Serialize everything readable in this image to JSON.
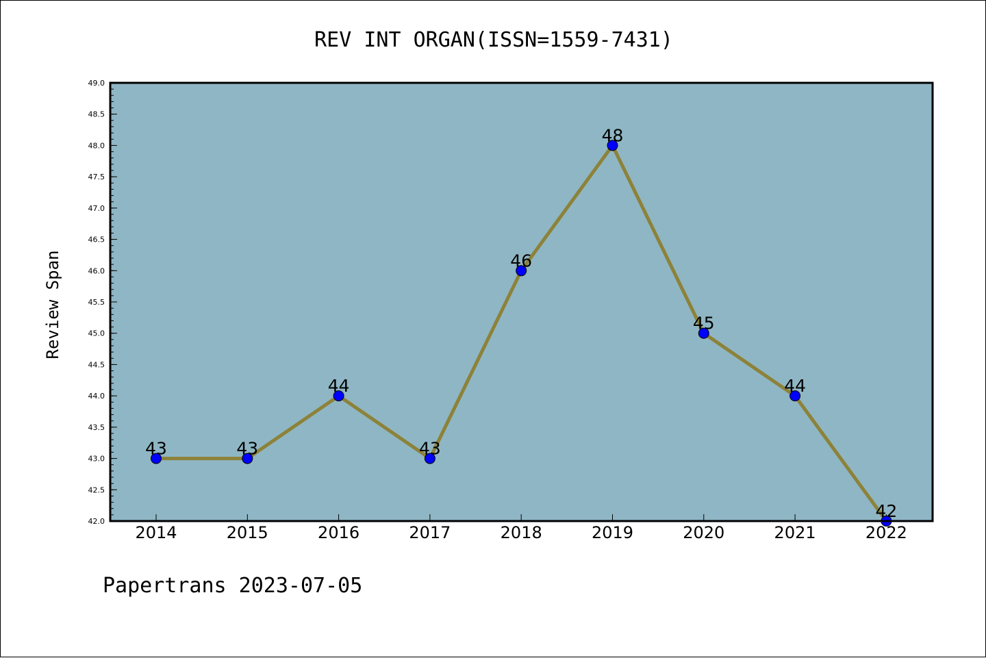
{
  "footer": "Papertrans 2023-07-05",
  "colors": {
    "plot_background": "#8fb6c4",
    "line": "#8c8239",
    "marker": "#0000ff",
    "axes": "#000000"
  },
  "chart_data": {
    "type": "line",
    "title": "REV INT ORGAN(ISSN=1559-7431)",
    "xlabel": "",
    "ylabel": "Review Span",
    "categories": [
      "2014",
      "2015",
      "2016",
      "2017",
      "2018",
      "2019",
      "2020",
      "2021",
      "2022"
    ],
    "series": [
      {
        "values": [
          43,
          43,
          44,
          43,
          46,
          48,
          45,
          44,
          42
        ]
      }
    ],
    "data_labels": [
      "43",
      "43",
      "44",
      "43",
      "46",
      "48",
      "45",
      "44",
      "42"
    ],
    "ylim": [
      42.0,
      49.0
    ],
    "yticks": [
      "42.0",
      "42.5",
      "43.0",
      "43.5",
      "44.0",
      "44.5",
      "45.0",
      "45.5",
      "46.0",
      "46.5",
      "47.0",
      "47.5",
      "48.0",
      "48.5",
      "49.0"
    ],
    "grid": false,
    "legend": "none",
    "markers": "circle"
  }
}
